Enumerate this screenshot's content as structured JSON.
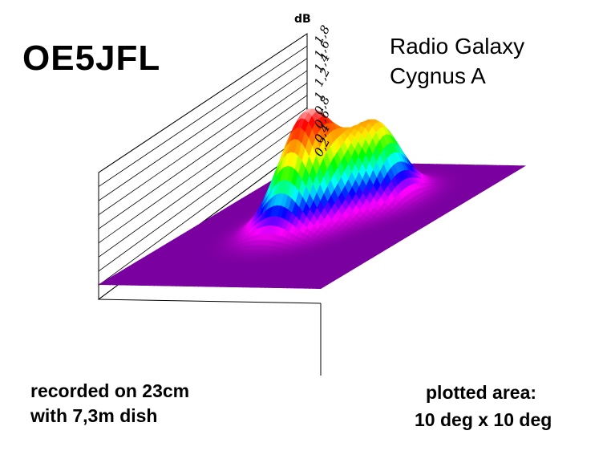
{
  "labels": {
    "callsign": "OE5JFL",
    "title_line1": "Radio Galaxy",
    "title_line2": "Cygnus A",
    "recorded_line1": "recorded on 23cm",
    "recorded_line2": "with 7,3m dish",
    "area_line1": "plotted area:",
    "area_line2": "10 deg x 10 deg"
  },
  "chart_data": {
    "type": "surface3d",
    "title": "Radio Galaxy Cygnus A",
    "zlabel": "dB",
    "zlim": [
      0,
      1.8
    ],
    "z_ticks": [
      "0,2",
      "0,4",
      "0,6",
      "0,8",
      "1",
      "1,2",
      "1,4",
      "1,6",
      "1,8"
    ],
    "extent_deg": [
      10,
      10
    ],
    "colormap": [
      "#7a00a0",
      "#ff00ff",
      "#0000ff",
      "#00ffff",
      "#00ff00",
      "#ffff00",
      "#ff8000",
      "#ff0000",
      "#ffffff"
    ],
    "peaks": [
      {
        "name": "",
        "x_deg": 4.7,
        "y_deg": 5.1,
        "peak_db": 1.72
      },
      {
        "name": "",
        "x_deg": 6.2,
        "y_deg": 6.8,
        "peak_db": 1.25
      }
    ],
    "background_db": 0.2
  }
}
